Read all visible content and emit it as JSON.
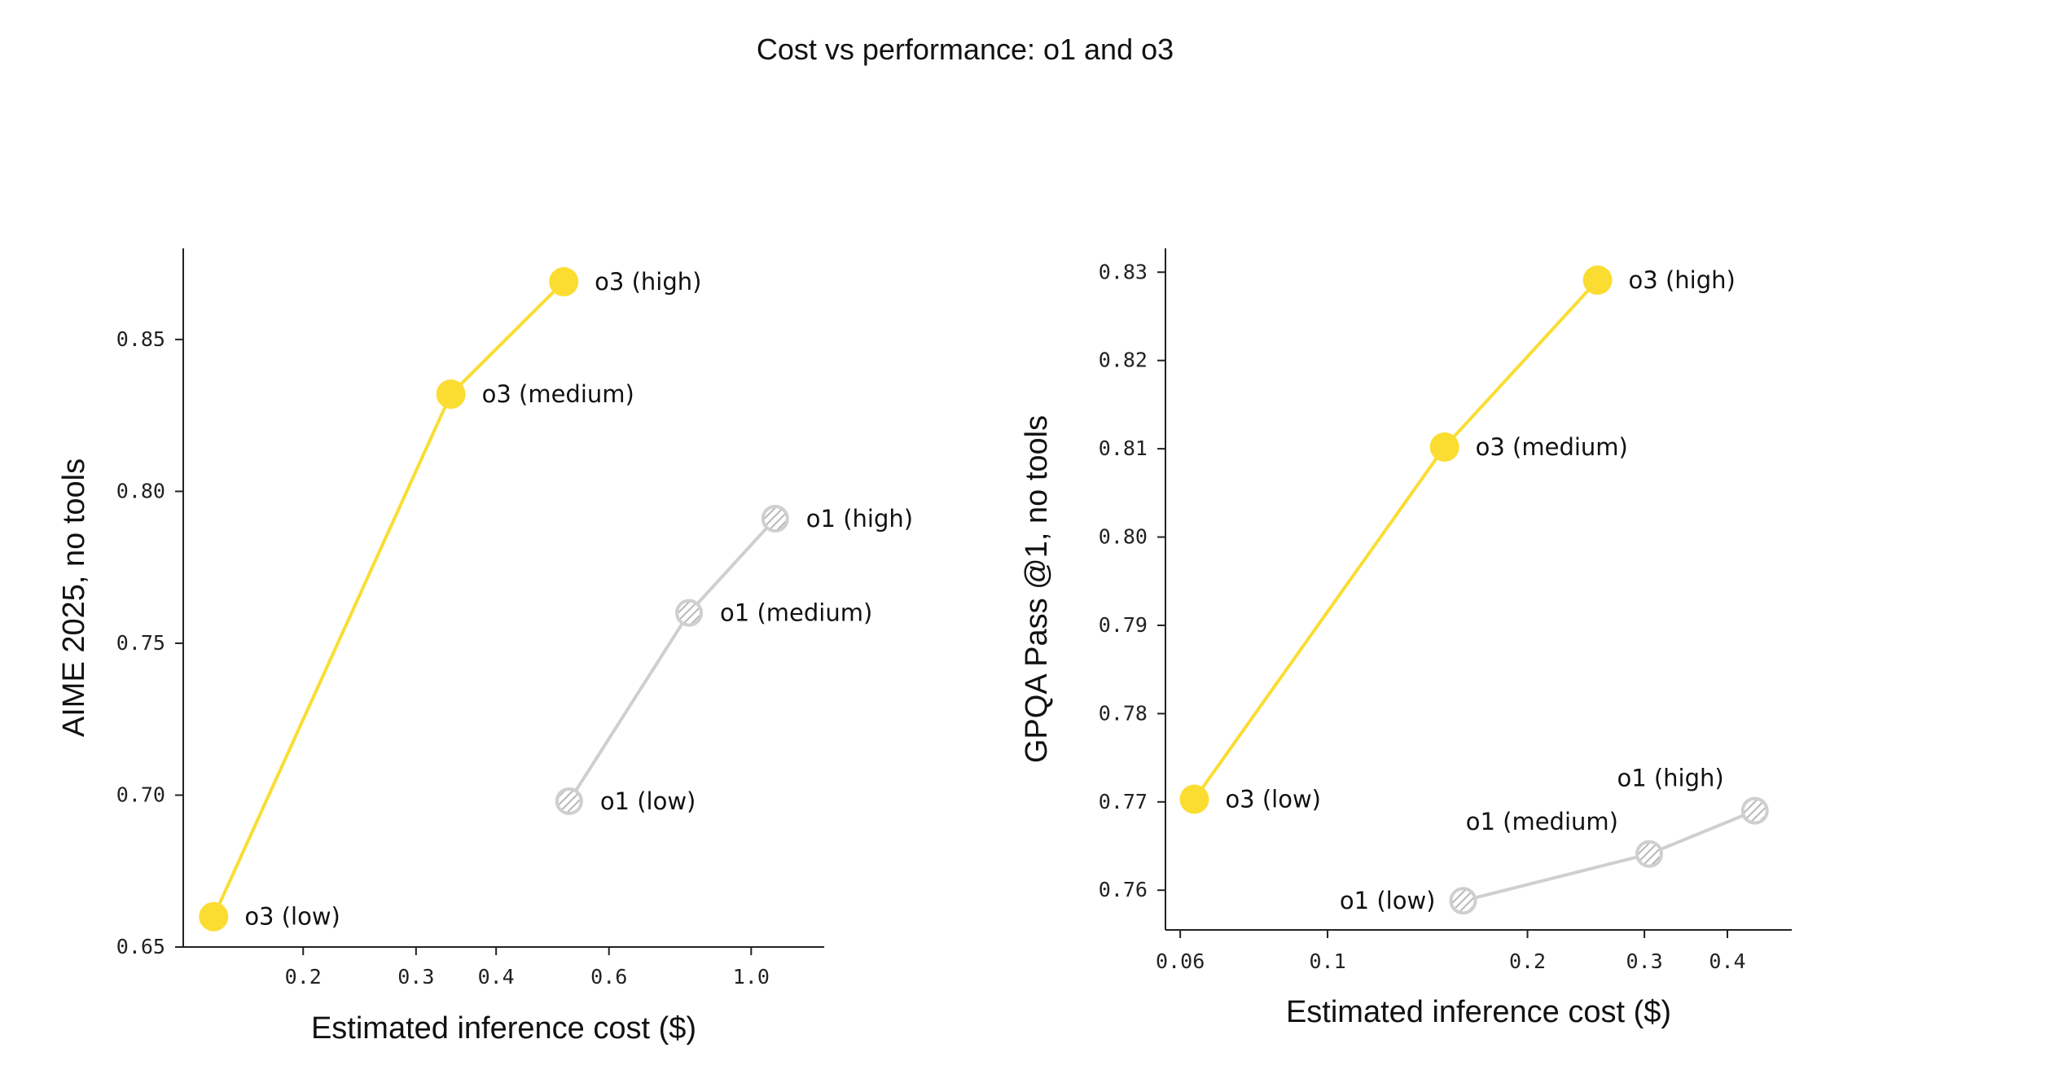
{
  "title": "Cost vs performance: o1 and o3",
  "colors": {
    "o3": "#FBDD32",
    "o1": "#CFCFCF",
    "o1_hatch": "#B8B8B8",
    "axis": "#222222"
  },
  "chart_data": [
    {
      "type": "scatter",
      "xlabel": "Estimated inference cost ($)",
      "ylabel": "AIME 2025, no tools",
      "xscale": "log",
      "xlim": [
        0.13,
        1.3
      ],
      "ylim": [
        0.65,
        0.88
      ],
      "xticks": [
        {
          "value": 0.2,
          "label": "0.2"
        },
        {
          "value": 0.3,
          "label": "0.3"
        },
        {
          "value": 0.4,
          "label": "0.4"
        },
        {
          "value": 0.6,
          "label": "0.6"
        },
        {
          "value": 1.0,
          "label": "1.0"
        }
      ],
      "yticks": [
        {
          "value": 0.65,
          "label": "0.65"
        },
        {
          "value": 0.7,
          "label": "0.70"
        },
        {
          "value": 0.75,
          "label": "0.75"
        },
        {
          "value": 0.8,
          "label": "0.80"
        },
        {
          "value": 0.85,
          "label": "0.85"
        }
      ],
      "series": [
        {
          "name": "o3",
          "style": "solid",
          "points": [
            {
              "label": "o3 (low)",
              "x": 0.145,
              "y": 0.66,
              "label_side": "right"
            },
            {
              "label": "o3 (medium)",
              "x": 0.34,
              "y": 0.832,
              "label_side": "right"
            },
            {
              "label": "o3 (high)",
              "x": 0.51,
              "y": 0.869,
              "label_side": "right"
            }
          ]
        },
        {
          "name": "o1",
          "style": "hatched",
          "points": [
            {
              "label": "o1 (low)",
              "x": 0.52,
              "y": 0.698,
              "label_side": "right"
            },
            {
              "label": "o1 (medium)",
              "x": 0.8,
              "y": 0.76,
              "label_side": "right"
            },
            {
              "label": "o1 (high)",
              "x": 1.09,
              "y": 0.791,
              "label_side": "right"
            }
          ]
        }
      ]
    },
    {
      "type": "scatter",
      "xlabel": "Estimated inference cost ($)",
      "ylabel": "GPQA Pass @1, no tools",
      "xscale": "log",
      "xlim": [
        0.057,
        0.5
      ],
      "ylim": [
        0.7555,
        0.8327
      ],
      "xticks": [
        {
          "value": 0.06,
          "label": "0.06"
        },
        {
          "value": 0.1,
          "label": "0.1"
        },
        {
          "value": 0.2,
          "label": "0.2"
        },
        {
          "value": 0.3,
          "label": "0.3"
        },
        {
          "value": 0.4,
          "label": "0.4"
        }
      ],
      "yticks": [
        {
          "value": 0.76,
          "label": "0.76"
        },
        {
          "value": 0.77,
          "label": "0.77"
        },
        {
          "value": 0.78,
          "label": "0.78"
        },
        {
          "value": 0.79,
          "label": "0.79"
        },
        {
          "value": 0.8,
          "label": "0.80"
        },
        {
          "value": 0.81,
          "label": "0.81"
        },
        {
          "value": 0.82,
          "label": "0.82"
        },
        {
          "value": 0.83,
          "label": "0.83"
        }
      ],
      "series": [
        {
          "name": "o3",
          "style": "solid",
          "points": [
            {
              "label": "o3 (low)",
              "x": 0.063,
              "y": 0.7703,
              "label_side": "right"
            },
            {
              "label": "o3 (medium)",
              "x": 0.15,
              "y": 0.8102,
              "label_side": "right"
            },
            {
              "label": "o3 (high)",
              "x": 0.255,
              "y": 0.8291,
              "label_side": "right"
            }
          ]
        },
        {
          "name": "o1",
          "style": "hatched",
          "points": [
            {
              "label": "o1 (low)",
              "x": 0.16,
              "y": 0.7588,
              "label_side": "left"
            },
            {
              "label": "o1 (medium)",
              "x": 0.305,
              "y": 0.7641,
              "label_side": "above-left"
            },
            {
              "label": "o1 (high)",
              "x": 0.44,
              "y": 0.769,
              "label_side": "above-left"
            }
          ]
        }
      ]
    }
  ]
}
